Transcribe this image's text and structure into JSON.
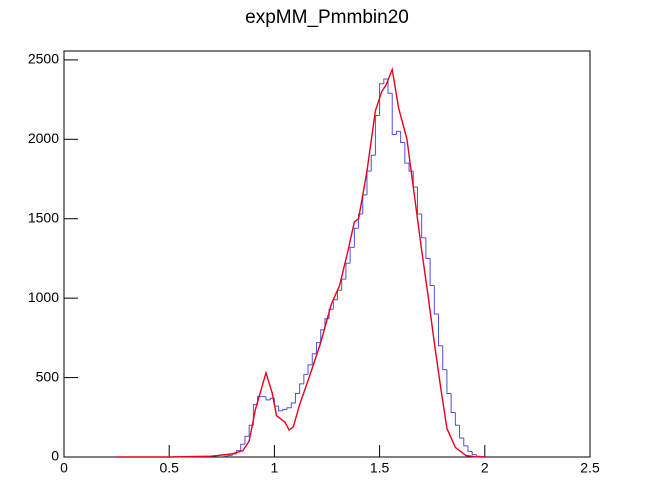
{
  "chart_data": {
    "type": "histogram",
    "title": "expMM_Pmmbin20",
    "bins": [
      0.76,
      0.78,
      0.8,
      0.82,
      0.84,
      0.86,
      0.88,
      0.9,
      0.92,
      0.94,
      0.96,
      0.98,
      1,
      1.02,
      1.04,
      1.06,
      1.08,
      1.1,
      1.12,
      1.14,
      1.16,
      1.18,
      1.2,
      1.22,
      1.24,
      1.26,
      1.28,
      1.3,
      1.32,
      1.34,
      1.36,
      1.38,
      1.4,
      1.42,
      1.44,
      1.46,
      1.48,
      1.5,
      1.52,
      1.54,
      1.56,
      1.58,
      1.6,
      1.62,
      1.64,
      1.66,
      1.68,
      1.7,
      1.72,
      1.74,
      1.76,
      1.78,
      1.8,
      1.82,
      1.84,
      1.86,
      1.88,
      1.9,
      1.92,
      1.94,
      1.96,
      1.98,
      2
    ],
    "values": [
      5,
      10,
      20,
      40,
      80,
      130,
      200,
      330,
      380,
      380,
      360,
      370,
      320,
      290,
      300,
      310,
      340,
      400,
      460,
      520,
      580,
      650,
      720,
      800,
      870,
      930,
      990,
      1050,
      1120,
      1220,
      1320,
      1440,
      1530,
      1650,
      1800,
      1900,
      2150,
      2350,
      2380,
      2290,
      2030,
      2050,
      1980,
      1850,
      1800,
      1700,
      1530,
      1380,
      1250,
      1080,
      900,
      700,
      550,
      400,
      280,
      200,
      120,
      70,
      35,
      15,
      5,
      2
    ],
    "color": "#5050d8",
    "overlay": {
      "type": "line",
      "color": "#e8001c",
      "x": [
        0.25,
        0.5,
        0.7,
        0.8,
        0.85,
        0.88,
        0.91,
        0.96,
        0.99,
        1.01,
        1.05,
        1.07,
        1.09,
        1.12,
        1.17,
        1.22,
        1.27,
        1.31,
        1.35,
        1.38,
        1.4,
        1.44,
        1.48,
        1.51,
        1.53,
        1.56,
        1.59,
        1.63,
        1.66,
        1.7,
        1.73,
        1.76,
        1.79,
        1.82,
        1.86,
        1.91,
        1.95,
        2
      ],
      "values": [
        0,
        0,
        5,
        20,
        40,
        100,
        300,
        530,
        400,
        260,
        220,
        170,
        190,
        330,
        520,
        720,
        960,
        1080,
        1300,
        1480,
        1500,
        1800,
        2180,
        2300,
        2340,
        2440,
        2200,
        2000,
        1700,
        1300,
        1020,
        720,
        440,
        180,
        60,
        10,
        2,
        0
      ]
    },
    "xlim": [
      0,
      2.5
    ],
    "ylim": [
      0,
      2556
    ],
    "xticks": [
      0,
      0.5,
      1,
      1.5,
      2,
      2.5
    ],
    "yticks": [
      0,
      500,
      1000,
      1500,
      2000,
      2500
    ]
  }
}
